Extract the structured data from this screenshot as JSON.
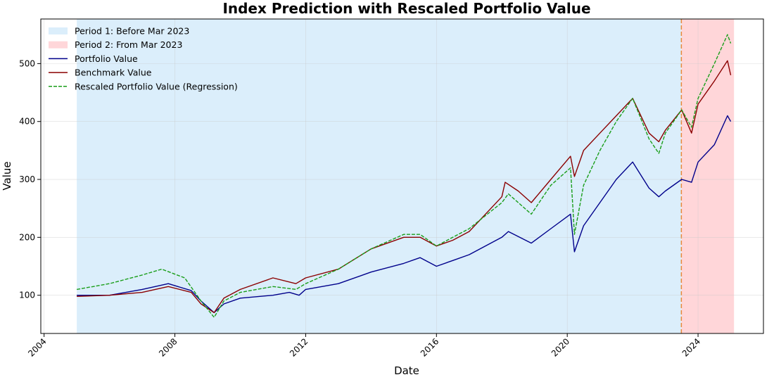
{
  "chart_data": {
    "type": "line",
    "title": "Index Prediction with Rescaled Portfolio Value",
    "xlabel": "Date",
    "ylabel": "Value",
    "xlim": [
      2003.9,
      2026.0
    ],
    "ylim": [
      34,
      577
    ],
    "xticks": [
      2004,
      2008,
      2012,
      2016,
      2020,
      2024
    ],
    "yticks": [
      100,
      200,
      300,
      400,
      500
    ],
    "grid": true,
    "legend_placement": "top-left",
    "periods": [
      {
        "name": "Period 1: Before Mar 2023",
        "start": 2005.0,
        "end": 2023.49,
        "color": "#dbeefb"
      },
      {
        "name": "Period 2: From Mar 2023",
        "start": 2023.49,
        "end": 2025.1,
        "color": "#ffd6d9"
      }
    ],
    "divider": {
      "x": 2023.49,
      "color": "#e8883a"
    },
    "series": [
      {
        "name": "Portfolio Value",
        "color": "#00008b",
        "style": "solid",
        "x": [
          2005,
          2006,
          2007,
          2007.8,
          2008.5,
          2008.8,
          2009.2,
          2009.5,
          2010,
          2011,
          2011.5,
          2011.8,
          2012,
          2013,
          2014,
          2015,
          2015.5,
          2016,
          2016.5,
          2017,
          2018,
          2018.2,
          2018.9,
          2019.5,
          2020.1,
          2020.22,
          2020.5,
          2021,
          2021.5,
          2022,
          2022.5,
          2022.8,
          2023,
          2023.5,
          2023.8,
          2024,
          2024.5,
          2024.9,
          2025
        ],
        "y": [
          100,
          100,
          110,
          120,
          108,
          90,
          70,
          85,
          95,
          100,
          105,
          100,
          110,
          120,
          140,
          155,
          165,
          150,
          160,
          170,
          200,
          210,
          190,
          215,
          240,
          175,
          220,
          260,
          300,
          330,
          285,
          270,
          280,
          300,
          295,
          330,
          360,
          410,
          400
        ]
      },
      {
        "name": "Benchmark Value",
        "color": "#8b0000",
        "style": "solid",
        "x": [
          2005,
          2006,
          2007,
          2007.8,
          2008.5,
          2008.8,
          2009.2,
          2009.5,
          2010,
          2011,
          2011.7,
          2012,
          2013,
          2014,
          2015,
          2015.5,
          2016,
          2016.5,
          2017,
          2018,
          2018.1,
          2018.5,
          2018.9,
          2019.5,
          2020.1,
          2020.22,
          2020.5,
          2021,
          2021.5,
          2022,
          2022.5,
          2022.8,
          2023,
          2023.5,
          2023.8,
          2024,
          2024.5,
          2024.9,
          2025
        ],
        "y": [
          98,
          100,
          105,
          115,
          105,
          85,
          70,
          95,
          110,
          130,
          120,
          130,
          145,
          180,
          200,
          200,
          185,
          195,
          210,
          270,
          295,
          280,
          260,
          300,
          340,
          305,
          350,
          380,
          410,
          440,
          380,
          365,
          385,
          420,
          380,
          430,
          470,
          505,
          480
        ]
      },
      {
        "name": "Rescaled Portfolio Value (Regression)",
        "color": "#1a9e1a",
        "style": "dashed",
        "x": [
          2005,
          2006,
          2007,
          2007.6,
          2008.3,
          2008.8,
          2009.2,
          2009.5,
          2010,
          2011,
          2011.7,
          2012,
          2013,
          2014,
          2015,
          2015.5,
          2016,
          2016.5,
          2017,
          2018,
          2018.2,
          2018.9,
          2019.5,
          2020.1,
          2020.22,
          2020.5,
          2021,
          2021.5,
          2022,
          2022.5,
          2022.8,
          2023,
          2023.5,
          2023.8,
          2024,
          2024.5,
          2024.9,
          2025
        ],
        "y": [
          110,
          120,
          135,
          145,
          130,
          90,
          62,
          90,
          105,
          115,
          110,
          120,
          145,
          180,
          205,
          205,
          185,
          200,
          215,
          260,
          275,
          240,
          290,
          320,
          205,
          290,
          350,
          400,
          440,
          370,
          345,
          380,
          420,
          390,
          440,
          500,
          550,
          535
        ]
      }
    ]
  }
}
